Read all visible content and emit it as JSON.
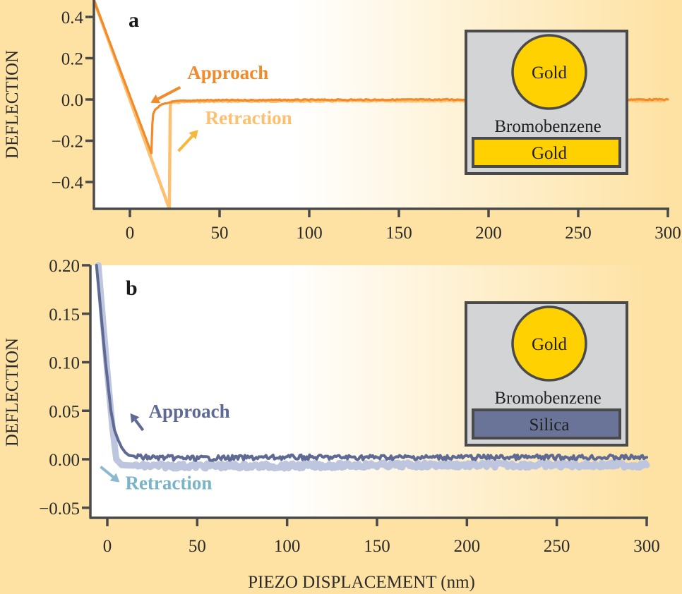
{
  "chart_data": [
    {
      "type": "line",
      "panel_label": "a",
      "title": "",
      "xlabel": "",
      "ylabel": "DEFLECTION",
      "xlim": [
        -20,
        300
      ],
      "ylim": [
        -0.53,
        0.48
      ],
      "xticks": [
        0,
        50,
        100,
        150,
        200,
        250,
        300
      ],
      "xtick_labels": [
        "0",
        "50",
        "100",
        "150",
        "200",
        "250",
        "300"
      ],
      "yticks": [
        0.4,
        0.2,
        0.0,
        -0.2,
        -0.4
      ],
      "ytick_labels": [
        "0.4",
        "0.2",
        "0.0",
        "−0.2",
        "−0.4"
      ],
      "grid": false,
      "series": [
        {
          "name": "Retraction",
          "color": "#FDC070",
          "x": [
            -20,
            22,
            22.5,
            23,
            30,
            50,
            100,
            150,
            200,
            250,
            298
          ],
          "y": [
            0.48,
            -0.53,
            -0.03,
            -0.015,
            -0.01,
            -0.008,
            -0.007,
            -0.006,
            -0.006,
            -0.006,
            -0.006
          ]
        },
        {
          "name": "Approach",
          "color": "#F08A2A",
          "x": [
            -20,
            12,
            12.5,
            13,
            14,
            16,
            18,
            20,
            23,
            28,
            40,
            100,
            200,
            300
          ],
          "y": [
            0.48,
            -0.26,
            -0.12,
            -0.07,
            -0.05,
            -0.035,
            -0.025,
            -0.02,
            -0.012,
            -0.007,
            -0.004,
            -0.002,
            0.0,
            0.0
          ]
        }
      ],
      "annotations": [
        {
          "text": "Approach",
          "color": "#F08A2A",
          "x": 32,
          "y": 0.1
        },
        {
          "text": "Retraction",
          "color": "#FDC070",
          "x": 42,
          "y": -0.12
        }
      ],
      "inset": {
        "sphere_label": "Gold",
        "medium_label": "Bromobenzene",
        "substrate_label": "Gold",
        "sphere_color": "#FFD100",
        "substrate_color": "#FFD100",
        "substrate_text_color": "#1f1f1f"
      }
    },
    {
      "type": "line",
      "panel_label": "b",
      "title": "",
      "xlabel": "PIEZO DISPLACEMENT (nm)",
      "ylabel": "DEFLECTION",
      "xlim": [
        -9.4,
        300
      ],
      "ylim": [
        -0.055,
        0.2
      ],
      "xticks": [
        0,
        50,
        100,
        150,
        200,
        250,
        300
      ],
      "xtick_labels": [
        "0",
        "50",
        "100",
        "150",
        "200",
        "250",
        "300"
      ],
      "yticks": [
        0.2,
        0.15,
        0.1,
        0.05,
        0.0,
        -0.05
      ],
      "ytick_labels": [
        "0.20",
        "0.15",
        "0.10",
        "0.05",
        "0.00",
        "−0.05"
      ],
      "grid": false,
      "series": [
        {
          "name": "Retraction",
          "color": "#BDC6DE",
          "x": [
            -5,
            0,
            3,
            5,
            8,
            20,
            50,
            100,
            150,
            200,
            250,
            300
          ],
          "y": [
            0.2,
            0.09,
            0.03,
            0.0,
            -0.006,
            -0.007,
            -0.007,
            -0.007,
            -0.006,
            -0.006,
            -0.006,
            -0.006
          ]
        },
        {
          "name": "Approach",
          "color": "#5E6A94",
          "x": [
            -6,
            -1,
            2,
            4,
            6,
            8,
            10,
            12,
            20,
            50,
            100,
            150,
            200,
            250,
            300
          ],
          "y": [
            0.2,
            0.1,
            0.05,
            0.03,
            0.02,
            0.012,
            0.007,
            0.004,
            0.002,
            0.001,
            0.002,
            0.002,
            0.002,
            0.002,
            0.002
          ]
        }
      ],
      "annotations": [
        {
          "text": "Approach",
          "color": "#5E6A94",
          "x": 23,
          "y": 0.043
        },
        {
          "text": "Retraction",
          "color": "#79B4C9",
          "x": 10,
          "y": -0.031
        }
      ],
      "inset": {
        "sphere_label": "Gold",
        "medium_label": "Bromobenzene",
        "substrate_label": "Silica",
        "sphere_color": "#FFD100",
        "substrate_color": "#6A7499",
        "substrate_text_color": "#ffffff"
      }
    }
  ]
}
